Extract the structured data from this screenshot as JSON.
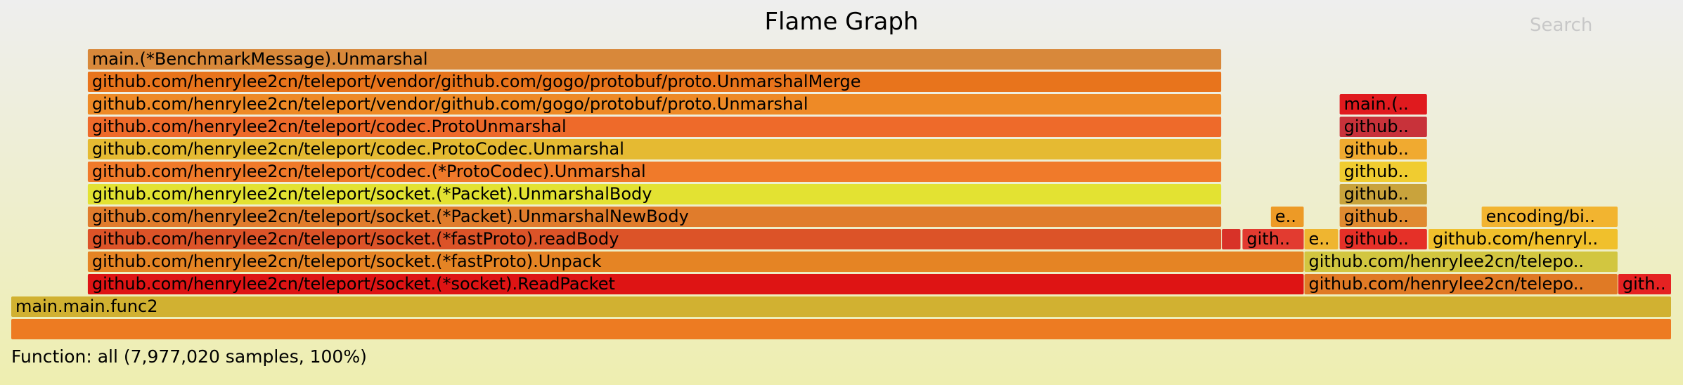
{
  "header": {
    "title": "Flame Graph",
    "search_label": "Search"
  },
  "footer": {
    "status": "Function: all (7,977,020 samples, 100%)"
  },
  "chart_data": {
    "type": "flamegraph",
    "title": "Flame Graph",
    "total_samples": 7977020,
    "x_range": [
      0,
      100
    ],
    "depth_count": 13,
    "frames": [
      {
        "label": "",
        "start": 0.0,
        "width": 100.0,
        "depth": 0,
        "color": "#ed7b22"
      },
      {
        "label": "main.main.func2",
        "start": 0.0,
        "width": 100.0,
        "depth": 1,
        "color": "#d1b131"
      },
      {
        "label": "github.com/henrylee2cn/teleport/socket.(*socket).ReadPacket",
        "start": 4.61,
        "width": 73.27,
        "depth": 2,
        "color": "#de1414"
      },
      {
        "label": "github.com/henrylee2cn/telepo..",
        "start": 77.88,
        "width": 18.9,
        "depth": 2,
        "color": "#e07a25"
      },
      {
        "label": "gith..",
        "start": 96.78,
        "width": 3.22,
        "depth": 2,
        "color": "#e52222"
      },
      {
        "label": "github.com/henrylee2cn/teleport/socket.(*fastProto).Unpack",
        "start": 4.61,
        "width": 73.27,
        "depth": 3,
        "color": "#e58424"
      },
      {
        "label": "github.com/henrylee2cn/telepo..",
        "start": 77.88,
        "width": 18.9,
        "depth": 3,
        "color": "#d2c640"
      },
      {
        "label": "github.com/henrylee2cn/teleport/socket.(*fastProto).readBody",
        "start": 4.61,
        "width": 68.3,
        "depth": 4,
        "color": "#dc5328"
      },
      {
        "label": "",
        "start": 72.91,
        "width": 1.16,
        "depth": 4,
        "color": "#d83228"
      },
      {
        "label": "gith..",
        "start": 74.15,
        "width": 3.73,
        "depth": 4,
        "color": "#e23b30"
      },
      {
        "label": "e..",
        "start": 77.88,
        "width": 2.07,
        "depth": 4,
        "color": "#efb530"
      },
      {
        "label": "github..",
        "start": 80.0,
        "width": 5.3,
        "depth": 4,
        "color": "#e53028"
      },
      {
        "label": "github.com/henryl..",
        "start": 85.35,
        "width": 11.43,
        "depth": 4,
        "color": "#f0c02c"
      },
      {
        "label": "github.com/henrylee2cn/teleport/socket.(*Packet).UnmarshalNewBody",
        "start": 4.61,
        "width": 68.3,
        "depth": 5,
        "color": "#e07c2c"
      },
      {
        "label": "e..",
        "start": 75.86,
        "width": 2.02,
        "depth": 5,
        "color": "#ed9a26"
      },
      {
        "label": "github..",
        "start": 80.0,
        "width": 5.3,
        "depth": 5,
        "color": "#e08a30"
      },
      {
        "label": "encoding/bi..",
        "start": 88.55,
        "width": 8.23,
        "depth": 5,
        "color": "#f2b430"
      },
      {
        "label": "github.com/henrylee2cn/teleport/socket.(*Packet).UnmarshalBody",
        "start": 4.61,
        "width": 68.3,
        "depth": 6,
        "color": "#e3e232"
      },
      {
        "label": "github..",
        "start": 80.0,
        "width": 5.3,
        "depth": 6,
        "color": "#c9a33c"
      },
      {
        "label": "github.com/henrylee2cn/teleport/codec.(*ProtoCodec).Unmarshal",
        "start": 4.61,
        "width": 68.3,
        "depth": 7,
        "color": "#f07a2a"
      },
      {
        "label": "github..",
        "start": 80.0,
        "width": 5.3,
        "depth": 7,
        "color": "#f0cc30"
      },
      {
        "label": "github.com/henrylee2cn/teleport/codec.ProtoCodec.Unmarshal",
        "start": 4.61,
        "width": 68.3,
        "depth": 8,
        "color": "#e5ba32"
      },
      {
        "label": "github..",
        "start": 80.0,
        "width": 5.3,
        "depth": 8,
        "color": "#f0aa30"
      },
      {
        "label": "github.com/henrylee2cn/teleport/codec.ProtoUnmarshal",
        "start": 4.61,
        "width": 68.3,
        "depth": 9,
        "color": "#ee6a2a"
      },
      {
        "label": "github..",
        "start": 80.0,
        "width": 5.3,
        "depth": 9,
        "color": "#c8323a"
      },
      {
        "label": "github.com/henrylee2cn/teleport/vendor/github.com/gogo/protobuf/proto.Unmarshal",
        "start": 4.61,
        "width": 68.3,
        "depth": 10,
        "color": "#ee8a26"
      },
      {
        "label": "main.(..",
        "start": 80.0,
        "width": 5.3,
        "depth": 10,
        "color": "#e01a1e"
      },
      {
        "label": "github.com/henrylee2cn/teleport/vendor/github.com/gogo/protobuf/proto.UnmarshalMerge",
        "start": 4.61,
        "width": 68.3,
        "depth": 11,
        "color": "#e8741c"
      },
      {
        "label": "main.(*BenchmarkMessage).Unmarshal",
        "start": 4.61,
        "width": 68.3,
        "depth": 12,
        "color": "#d8883a"
      }
    ]
  }
}
